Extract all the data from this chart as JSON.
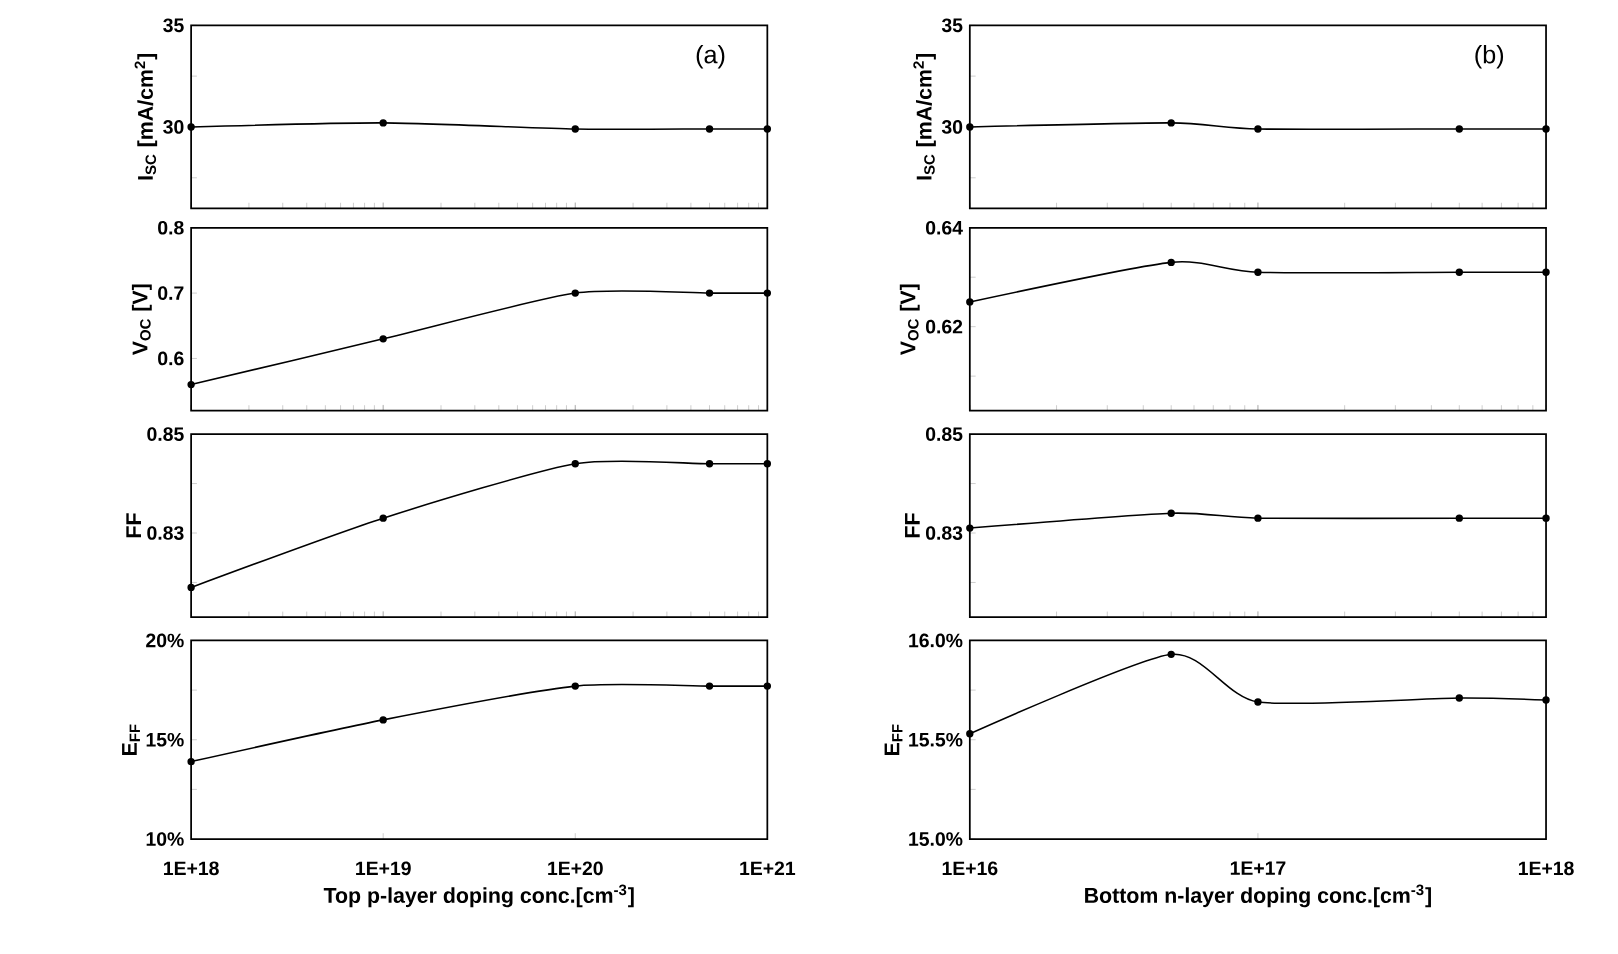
{
  "chart_data": [
    {
      "type": "line",
      "ylabel": "I$_{SC}$ [mA/cm$^{2}$]",
      "annotations": [
        "(a)"
      ],
      "x": [
        1e+18,
        1e+19,
        1e+20,
        5e+20,
        1e+21
      ],
      "values": [
        30,
        30.2,
        29.9,
        29.9,
        29.9
      ],
      "color": "#000000",
      "log": "x",
      "xlim": [
        1e+18,
        1e+21
      ],
      "ylim": [
        26,
        35
      ],
      "yticks": [
        {
          "value": 27.5,
          "label": null
        },
        30,
        {
          "value": 32.5,
          "label": null
        },
        35
      ],
      "tick_labels": "y",
      "marker": "circle",
      "line_style": "solid"
    },
    {
      "type": "line",
      "ylabel": "I$_{SC}$ [mA/cm$^{2}$]",
      "annotations": [
        "(b)"
      ],
      "x": [
        1e+16,
        5e+16,
        1e+17,
        5e+17,
        1e+18
      ],
      "values": [
        30,
        30.2,
        29.9,
        29.9,
        29.9
      ],
      "color": "#000000",
      "log": "x",
      "xlim": [
        1e+16,
        1e+18
      ],
      "ylim": [
        26,
        35
      ],
      "yticks": [
        {
          "value": 27.5,
          "label": null
        },
        30,
        {
          "value": 32.5,
          "label": null
        },
        35
      ],
      "tick_labels": "y",
      "marker": "circle",
      "line_style": "solid"
    },
    {
      "type": "line",
      "ylabel": "V$_{OC}$ [V]",
      "x": [
        1e+18,
        1e+19,
        1e+20,
        5e+20,
        1e+21
      ],
      "values": [
        0.56,
        0.63,
        0.7,
        0.7,
        0.7
      ],
      "color": "#000000",
      "log": "x",
      "xlim": [
        1e+18,
        1e+21
      ],
      "ylim": [
        0.52,
        0.8
      ],
      "yticks": [
        0.6,
        0.7,
        0.8
      ],
      "tick_labels": "y",
      "marker": "circle",
      "line_style": "solid"
    },
    {
      "type": "line",
      "ylabel": "V$_{OC}$ [V]",
      "x": [
        1e+16,
        5e+16,
        1e+17,
        5e+17,
        1e+18
      ],
      "values": [
        0.625,
        0.633,
        0.631,
        0.631,
        0.631
      ],
      "color": "#000000",
      "log": "x",
      "xlim": [
        1e+16,
        1e+18
      ],
      "ylim": [
        0.603,
        0.64
      ],
      "yticks": [
        {
          "value": 0.61,
          "label": null
        },
        0.62,
        {
          "value": 0.63,
          "label": null
        },
        0.64
      ],
      "tick_labels": "y",
      "marker": "circle",
      "line_style": "solid"
    },
    {
      "type": "line",
      "ylabel": "FF",
      "x": [
        1e+18,
        1e+19,
        1e+20,
        5e+20,
        1e+21
      ],
      "values": [
        0.819,
        0.833,
        0.844,
        0.844,
        0.844
      ],
      "color": "#000000",
      "log": "x",
      "xlim": [
        1e+18,
        1e+21
      ],
      "ylim": [
        0.813,
        0.85
      ],
      "yticks": [
        {
          "value": 0.82,
          "label": null
        },
        0.83,
        {
          "value": 0.84,
          "label": null
        },
        0.85
      ],
      "tick_labels": "y",
      "marker": "circle",
      "line_style": "solid"
    },
    {
      "type": "line",
      "ylabel": "FF",
      "x": [
        1e+16,
        5e+16,
        1e+17,
        5e+17,
        1e+18
      ],
      "values": [
        0.831,
        0.834,
        0.833,
        0.833,
        0.833
      ],
      "color": "#000000",
      "log": "x",
      "xlim": [
        1e+16,
        1e+18
      ],
      "ylim": [
        0.813,
        0.85
      ],
      "yticks": [
        {
          "value": 0.82,
          "label": null
        },
        0.83,
        {
          "value": 0.84,
          "label": null
        },
        0.85
      ],
      "tick_labels": "y",
      "marker": "circle",
      "line_style": "solid"
    },
    {
      "type": "line",
      "xlabel": "Top p-layer doping conc.[cm$^{-3}$]",
      "ylabel": "E$_{FF}$",
      "x": [
        1e+18,
        1e+19,
        1e+20,
        5e+20,
        1e+21
      ],
      "values": [
        13.9,
        16.0,
        17.7,
        17.7,
        17.7
      ],
      "color": "#000000",
      "log": "x",
      "xlim": [
        1e+18,
        1e+21
      ],
      "xticks": [
        {
          "value": 1e+18,
          "label": "1E+18"
        },
        {
          "value": 1e+19,
          "label": "1E+19"
        },
        {
          "value": 1e+20,
          "label": "1E+20"
        },
        {
          "value": 1e+21,
          "label": "1E+21"
        }
      ],
      "ylim": [
        10,
        20
      ],
      "yticks": [
        {
          "value": 10,
          "label": "10%"
        },
        {
          "value": 12.5,
          "label": null
        },
        {
          "value": 15,
          "label": "15%"
        },
        {
          "value": 17.5,
          "label": null
        },
        {
          "value": 20,
          "label": "20%"
        }
      ],
      "marker": "circle",
      "line_style": "solid"
    },
    {
      "type": "line",
      "xlabel": "Bottom n-layer doping conc.[cm$^{-3}$]",
      "ylabel": "E$_{FF}$",
      "x": [
        1e+16,
        5e+16,
        1e+17,
        5e+17,
        1e+18
      ],
      "values": [
        15.53,
        15.93,
        15.69,
        15.71,
        15.7
      ],
      "color": "#000000",
      "log": "x",
      "xlim": [
        1e+16,
        1e+18
      ],
      "xticks": [
        {
          "value": 1e+16,
          "label": "1E+16"
        },
        {
          "value": 1e+17,
          "label": "1E+17"
        },
        {
          "value": 1e+18,
          "label": "1E+18"
        }
      ],
      "ylim": [
        15,
        16
      ],
      "yticks": [
        {
          "value": 15,
          "label": "15.0%"
        },
        {
          "value": 15.25,
          "label": null
        },
        {
          "value": 15.5,
          "label": "15.5%"
        },
        {
          "value": 15.75,
          "label": null
        },
        {
          "value": 16,
          "label": "16.0%"
        }
      ],
      "marker": "circle",
      "line_style": "solid"
    }
  ]
}
